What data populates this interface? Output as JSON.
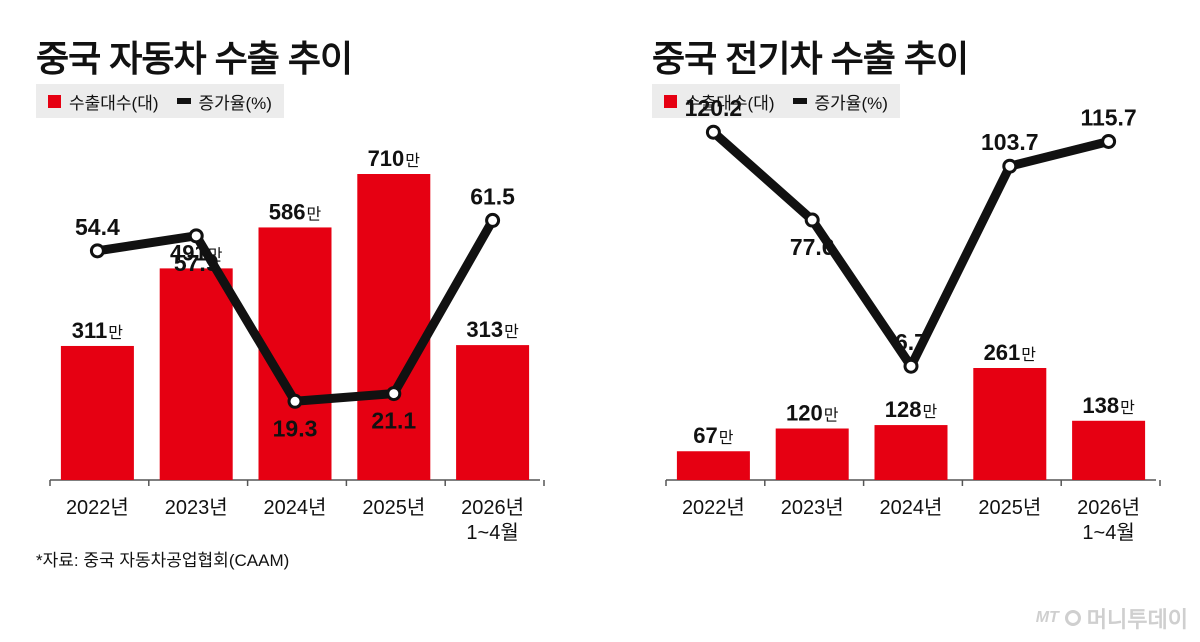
{
  "legend": {
    "bars": "수출대수(대)",
    "line": "증가율(%)"
  },
  "source": "*자료: 중국 자동차공업협회(CAAM)",
  "brand": {
    "mark": "MT",
    "name": "머니투데이"
  },
  "colors": {
    "bar": "#e60012",
    "line": "#111111",
    "axis": "#555555"
  },
  "chart_data": [
    {
      "type": "bar",
      "title": "중국 자동차 수출 추이",
      "categories": [
        "2022년",
        "2023년",
        "2024년",
        "2025년",
        "2026년\n1~4월"
      ],
      "series": [
        {
          "name": "수출대수(대)",
          "type": "bar",
          "values": [
            311,
            491,
            586,
            710,
            313
          ],
          "labels": [
            "311",
            "491",
            "586",
            "710",
            "313"
          ],
          "unit": "만"
        },
        {
          "name": "증가율(%)",
          "type": "line",
          "values": [
            54.4,
            57.9,
            19.3,
            21.1,
            61.5
          ],
          "labels": [
            "54.4",
            "57.9",
            "19.3",
            "21.1",
            "61.5"
          ]
        }
      ]
    },
    {
      "type": "bar",
      "title": "중국 전기차 수출 추이",
      "categories": [
        "2022년",
        "2023년",
        "2024년",
        "2025년",
        "2026년\n1~4월"
      ],
      "series": [
        {
          "name": "수출대수(대)",
          "type": "bar",
          "values": [
            67,
            120,
            128,
            261,
            138
          ],
          "labels": [
            "67",
            "120",
            "128",
            "261",
            "138"
          ],
          "unit": "만"
        },
        {
          "name": "증가율(%)",
          "type": "line",
          "values": [
            120.2,
            77.6,
            6.7,
            103.7,
            115.7
          ],
          "labels": [
            "120.2",
            "77.6",
            "6.7",
            "103.7",
            "115.7"
          ]
        }
      ]
    }
  ]
}
